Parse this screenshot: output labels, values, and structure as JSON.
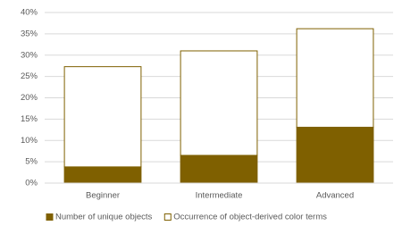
{
  "chart_data": {
    "type": "stacked_bar",
    "categories": [
      "Beginner",
      "Intermediate",
      "Advanced"
    ],
    "series": [
      {
        "name": "Number of unique objects",
        "color": "#7f6000",
        "values": [
          3.8,
          6.5,
          13.1
        ]
      },
      {
        "name": "Occurrence of object-derived color terms",
        "color": "#ffffff",
        "values": [
          23.5,
          24.5,
          23.1
        ]
      }
    ],
    "edgecolor": "#7f6000",
    "ylim": [
      0,
      40
    ],
    "yticks": [
      {
        "value": 0,
        "label": "0%"
      },
      {
        "value": 5,
        "label": "5%"
      },
      {
        "value": 10,
        "label": "10%"
      },
      {
        "value": 15,
        "label": "15%"
      },
      {
        "value": 20,
        "label": "20%"
      },
      {
        "value": 25,
        "label": "25%"
      },
      {
        "value": 30,
        "label": "30%"
      },
      {
        "value": 35,
        "label": "35%"
      },
      {
        "value": 40,
        "label": "40%"
      }
    ],
    "grid": true,
    "legend": "bottom"
  }
}
